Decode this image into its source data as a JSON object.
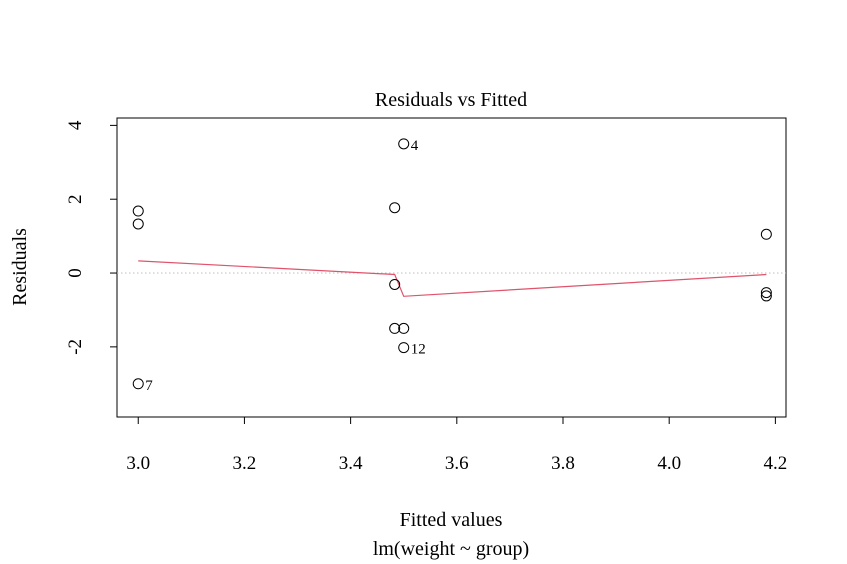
{
  "chart_data": {
    "type": "scatter",
    "title": "Residuals vs Fitted",
    "xlabel": "Fitted values",
    "subtitle": "lm(weight ~ group)",
    "ylabel": "Residuals",
    "xlim": [
      2.96,
      4.22
    ],
    "ylim": [
      -3.9,
      4.2
    ],
    "x_ticks": [
      3.0,
      3.2,
      3.4,
      3.6,
      3.8,
      4.0,
      4.2
    ],
    "x_tick_labels": [
      "3.0",
      "3.2",
      "3.4",
      "3.6",
      "3.8",
      "4.0",
      "4.2"
    ],
    "y_ticks": [
      -2,
      0,
      2,
      4
    ],
    "y_tick_labels": [
      "-2",
      "0",
      "2",
      "4"
    ],
    "grid": false,
    "points": [
      {
        "x": 3.0,
        "y": 1.68
      },
      {
        "x": 3.0,
        "y": 1.33
      },
      {
        "x": 3.0,
        "y": -3.0,
        "label": "7"
      },
      {
        "x": 3.483,
        "y": 1.77
      },
      {
        "x": 3.483,
        "y": -0.31
      },
      {
        "x": 3.483,
        "y": -1.5
      },
      {
        "x": 3.5,
        "y": -1.5
      },
      {
        "x": 3.5,
        "y": 3.5,
        "label": "4"
      },
      {
        "x": 3.5,
        "y": -2.02,
        "label": "12"
      },
      {
        "x": 4.183,
        "y": 1.05
      },
      {
        "x": 4.183,
        "y": -0.53
      },
      {
        "x": 4.183,
        "y": -0.62
      }
    ],
    "smooth_line": [
      {
        "x": 3.0,
        "y": 0.33
      },
      {
        "x": 3.483,
        "y": -0.04
      },
      {
        "x": 3.5,
        "y": -0.63
      },
      {
        "x": 4.183,
        "y": -0.04
      }
    ],
    "reference_line_y": 0,
    "colors": {
      "points": "#000000",
      "smooth_line": "#DF536B",
      "reference_line": "#BEBEBE",
      "axes": "#000000"
    }
  }
}
